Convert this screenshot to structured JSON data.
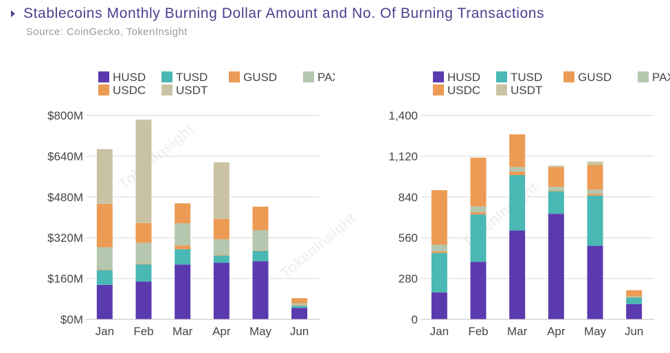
{
  "header": {
    "title": "Stablecoins Monthly Burning Dollar Amount and No. Of Burning Transactions",
    "source": "Source: CoinGecko, TokenInsight"
  },
  "watermark": "TokenInsight",
  "colors": {
    "HUSD": "#5b3ab0",
    "TUSD": "#4ab8b4",
    "GUSD": "#ec9b55",
    "PAX": "#b5c7ae",
    "USDC": "#ec9b55",
    "USDT": "#c9c3a4"
  },
  "chart_data": [
    {
      "type": "bar",
      "stacked": true,
      "categories": [
        "Jan",
        "Feb",
        "Mar",
        "Apr",
        "May",
        "Jun"
      ],
      "ylim": [
        0,
        800
      ],
      "yticks": [
        0,
        160,
        320,
        480,
        640,
        800
      ],
      "ytick_labels": [
        "$0M",
        "$160M",
        "$320M",
        "$480M",
        "$640M",
        "$800M"
      ],
      "grid": true,
      "legend": "top",
      "series": [
        {
          "name": "HUSD",
          "values": [
            135,
            148,
            215,
            222,
            228,
            45
          ]
        },
        {
          "name": "TUSD",
          "values": [
            58,
            68,
            60,
            28,
            40,
            8
          ]
        },
        {
          "name": "GUSD",
          "values": [
            2,
            2,
            15,
            2,
            2,
            2
          ]
        },
        {
          "name": "PAX",
          "values": [
            88,
            82,
            87,
            62,
            80,
            8
          ]
        },
        {
          "name": "USDC",
          "values": [
            170,
            78,
            78,
            80,
            92,
            20
          ]
        },
        {
          "name": "USDT",
          "values": [
            215,
            405,
            0,
            222,
            0,
            0
          ]
        }
      ]
    },
    {
      "type": "bar",
      "stacked": true,
      "categories": [
        "Jan",
        "Feb",
        "Mar",
        "Apr",
        "May",
        "Jun"
      ],
      "ylim": [
        0,
        1400
      ],
      "yticks": [
        0,
        280,
        560,
        840,
        1120,
        1400
      ],
      "ytick_labels": [
        "0",
        "280",
        "560",
        "840",
        "1,120",
        "1,400"
      ],
      "grid": true,
      "legend": "top",
      "series": [
        {
          "name": "HUSD",
          "values": [
            185,
            395,
            610,
            725,
            505,
            105
          ]
        },
        {
          "name": "TUSD",
          "values": [
            270,
            325,
            380,
            155,
            345,
            45
          ]
        },
        {
          "name": "GUSD",
          "values": [
            12,
            15,
            25,
            5,
            12,
            5
          ]
        },
        {
          "name": "PAX",
          "values": [
            45,
            40,
            30,
            25,
            28,
            5
          ]
        },
        {
          "name": "USDC",
          "values": [
            375,
            335,
            225,
            135,
            170,
            40
          ]
        },
        {
          "name": "USDT",
          "values": [
            0,
            0,
            0,
            10,
            22,
            0
          ]
        }
      ]
    }
  ]
}
